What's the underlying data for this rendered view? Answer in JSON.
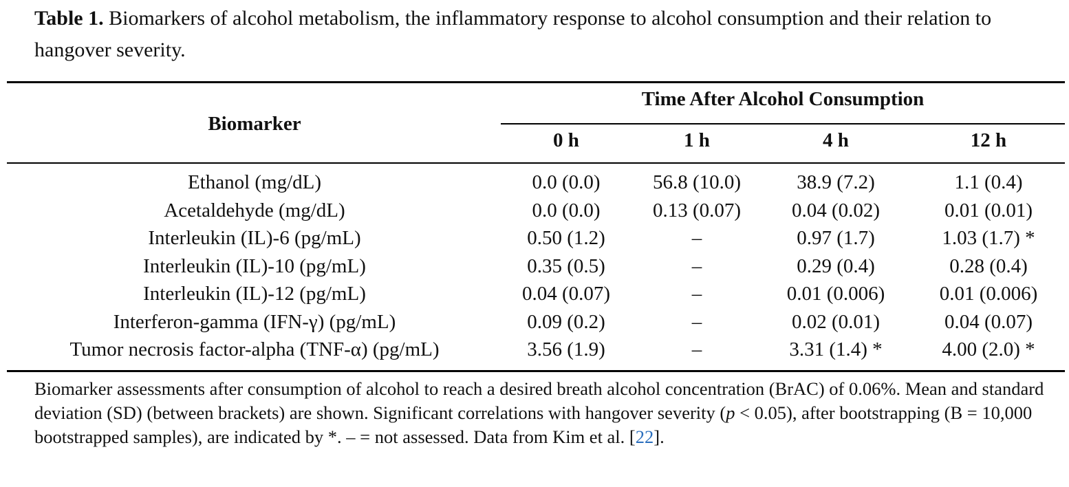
{
  "caption": {
    "label": "Table 1.",
    "text": " Biomarkers of alcohol metabolism, the inflammatory response to alcohol consumption and their relation to hangover severity."
  },
  "table": {
    "header_biomarker": "Biomarker",
    "header_span": "Time After Alcohol Consumption",
    "time_points": [
      "0 h",
      "1 h",
      "4 h",
      "12 h"
    ],
    "rows": [
      {
        "biomarker": "Ethanol (mg/dL)",
        "t0": "0.0 (0.0)",
        "t1": "56.8 (10.0)",
        "t4": "38.9 (7.2)",
        "t12": "1.1 (0.4)"
      },
      {
        "biomarker": "Acetaldehyde (mg/dL)",
        "t0": "0.0 (0.0)",
        "t1": "0.13 (0.07)",
        "t4": "0.04 (0.02)",
        "t12": "0.01 (0.01)"
      },
      {
        "biomarker": "Interleukin (IL)-6 (pg/mL)",
        "t0": "0.50 (1.2)",
        "t1": "–",
        "t4": "0.97 (1.7)",
        "t12": "1.03 (1.7) *"
      },
      {
        "biomarker": "Interleukin (IL)-10 (pg/mL)",
        "t0": "0.35 (0.5)",
        "t1": "–",
        "t4": "0.29 (0.4)",
        "t12": "0.28 (0.4)"
      },
      {
        "biomarker": "Interleukin (IL)-12 (pg/mL)",
        "t0": "0.04 (0.07)",
        "t1": "–",
        "t4": "0.01 (0.006)",
        "t12": "0.01 (0.006)"
      },
      {
        "biomarker": "Interferon-gamma (IFN-γ) (pg/mL)",
        "t0": "0.09 (0.2)",
        "t1": "–",
        "t4": "0.02 (0.01)",
        "t12": "0.04 (0.07)"
      },
      {
        "biomarker": "Tumor necrosis factor-alpha (TNF-α) (pg/mL)",
        "t0": "3.56 (1.9)",
        "t1": "–",
        "t4": "3.31 (1.4) *",
        "t12": "4.00 (2.0) *"
      }
    ]
  },
  "footnote": {
    "part1": "Biomarker assessments after consumption of alcohol to reach a desired breath alcohol concentration (BrAC) of 0.06%. Mean and standard deviation (SD) (between brackets) are shown. Significant correlations with hangover severity (",
    "p_symbol": "p",
    "part2": " < 0.05), after bootstrapping (B = 10,000 bootstrapped samples), are indicated by *. – = not assessed. Data from Kim et al. [",
    "ref": "22",
    "part3": "]."
  }
}
